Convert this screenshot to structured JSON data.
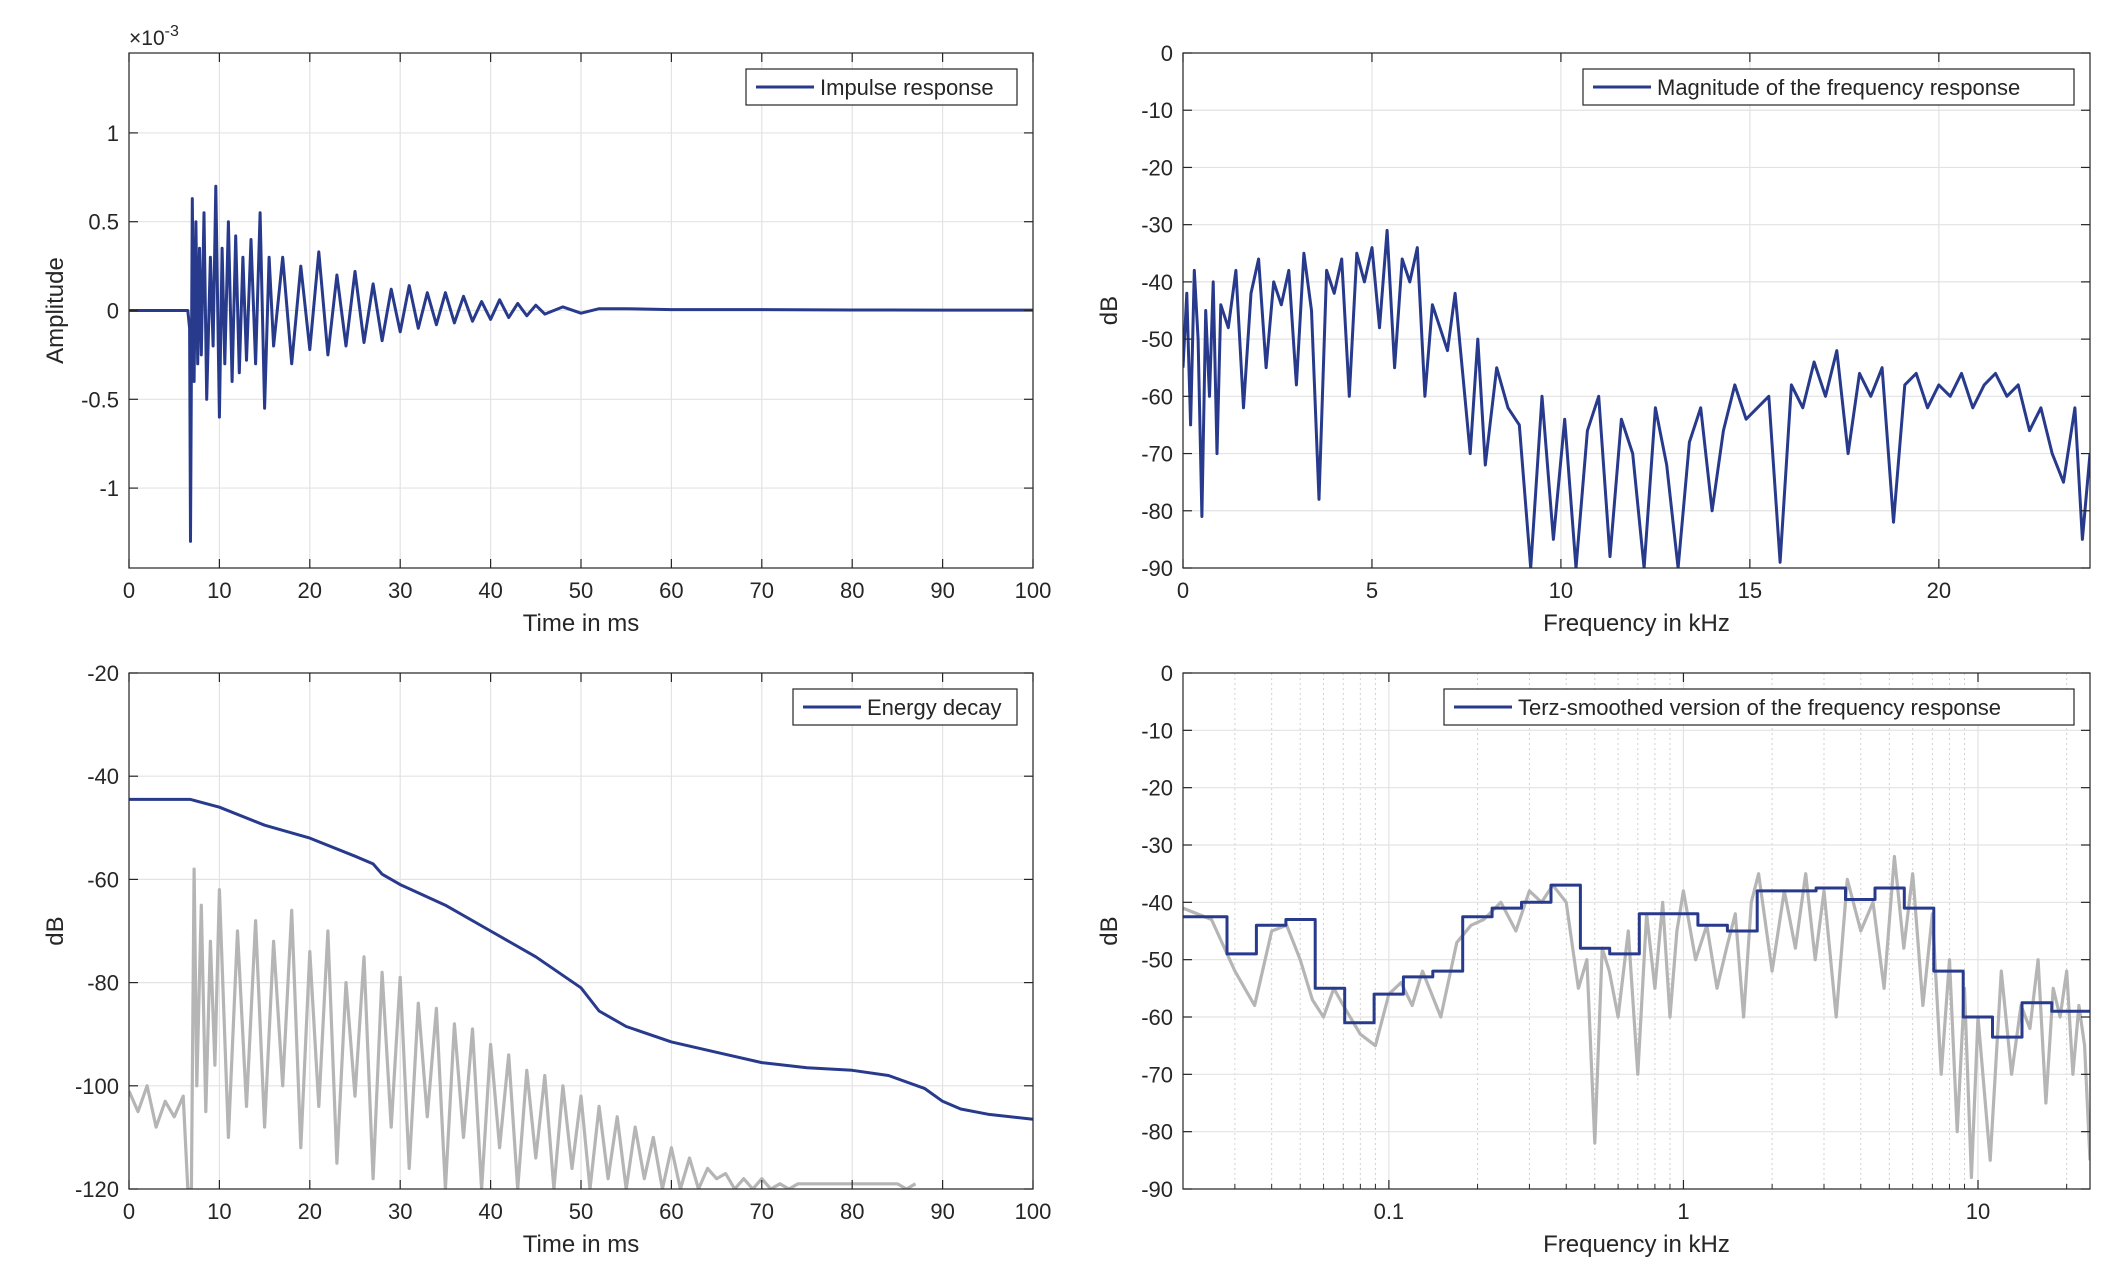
{
  "colors": {
    "series": "#283a8c",
    "gray": "#b5b5b5",
    "grid": "#e3e3e3",
    "axis": "#262626"
  },
  "chart_data": [
    {
      "id": "impulse",
      "type": "line",
      "xlabel": "Time in ms",
      "ylabel": "Amplitude",
      "exponent_label": "×10",
      "exponent_power": "-3",
      "xlim": [
        0,
        100
      ],
      "ylim": [
        -1.45,
        1.45
      ],
      "xticks": [
        0,
        10,
        20,
        30,
        40,
        50,
        60,
        70,
        80,
        90,
        100
      ],
      "xtick_labels": [
        "0",
        "10",
        "20",
        "30",
        "40",
        "50",
        "60",
        "70",
        "80",
        "90",
        "100"
      ],
      "yticks": [
        -1,
        -0.5,
        0,
        0.5,
        1
      ],
      "ytick_labels": [
        "-1",
        "-0.5",
        "0",
        "0.5",
        "1"
      ],
      "legend": [
        "Impulse response"
      ],
      "legend_position": "top-right",
      "series": [
        {
          "name": "Impulse response",
          "x": [
            0,
            6.5,
            6.7,
            6.8,
            7,
            7.2,
            7.4,
            7.6,
            7.8,
            8,
            8.3,
            8.6,
            9,
            9.3,
            9.6,
            10,
            10.3,
            10.6,
            11,
            11.4,
            11.8,
            12.2,
            12.6,
            13,
            13.5,
            14,
            14.5,
            15,
            15.5,
            16,
            17,
            18,
            19,
            20,
            21,
            22,
            23,
            24,
            25,
            26,
            27,
            28,
            29,
            30,
            31,
            32,
            33,
            34,
            35,
            36,
            37,
            38,
            39,
            40,
            41,
            42,
            43,
            44,
            45,
            46,
            48,
            50,
            52,
            55,
            60,
            70,
            80,
            90,
            100
          ],
          "y": [
            0,
            0,
            -0.1,
            -1.3,
            0.63,
            -0.4,
            0.5,
            -0.3,
            0.35,
            -0.25,
            0.55,
            -0.5,
            0.3,
            -0.2,
            0.7,
            -0.6,
            0.35,
            -0.3,
            0.5,
            -0.4,
            0.42,
            -0.35,
            0.3,
            -0.28,
            0.4,
            -0.3,
            0.55,
            -0.55,
            0.3,
            -0.2,
            0.3,
            -0.3,
            0.25,
            -0.22,
            0.33,
            -0.25,
            0.2,
            -0.2,
            0.22,
            -0.18,
            0.15,
            -0.17,
            0.12,
            -0.12,
            0.14,
            -0.1,
            0.1,
            -0.08,
            0.1,
            -0.07,
            0.08,
            -0.06,
            0.05,
            -0.05,
            0.06,
            -0.04,
            0.04,
            -0.03,
            0.03,
            -0.02,
            0.02,
            -0.015,
            0.01,
            0.01,
            0.005,
            0.005,
            0.003,
            0.002,
            0.002
          ]
        }
      ]
    },
    {
      "id": "magnitude",
      "type": "line",
      "xlabel": "Frequency in kHz",
      "ylabel": "dB",
      "xlim": [
        0,
        24
      ],
      "ylim": [
        -90,
        0
      ],
      "xticks": [
        0,
        5,
        10,
        15,
        20
      ],
      "xtick_labels": [
        "0",
        "5",
        "10",
        "15",
        "20"
      ],
      "yticks": [
        0,
        -10,
        -20,
        -30,
        -40,
        -50,
        -60,
        -70,
        -80,
        -90
      ],
      "ytick_labels": [
        "0",
        "-10",
        "-20",
        "-30",
        "-40",
        "-50",
        "-60",
        "-70",
        "-80",
        "-90"
      ],
      "legend": [
        "Magnitude of the frequency response"
      ],
      "legend_position": "top-right",
      "series": [
        {
          "name": "Magnitude of the frequency response",
          "x": [
            0,
            0.1,
            0.2,
            0.3,
            0.4,
            0.5,
            0.6,
            0.7,
            0.8,
            0.9,
            1.0,
            1.2,
            1.4,
            1.6,
            1.8,
            2.0,
            2.2,
            2.4,
            2.6,
            2.8,
            3.0,
            3.2,
            3.4,
            3.6,
            3.8,
            4.0,
            4.2,
            4.4,
            4.6,
            4.8,
            5.0,
            5.2,
            5.4,
            5.6,
            5.8,
            6.0,
            6.2,
            6.4,
            6.6,
            6.8,
            7.0,
            7.2,
            7.4,
            7.6,
            7.8,
            8.0,
            8.3,
            8.6,
            8.9,
            9.2,
            9.5,
            9.8,
            10.1,
            10.4,
            10.7,
            11.0,
            11.3,
            11.6,
            11.9,
            12.2,
            12.5,
            12.8,
            13.1,
            13.4,
            13.7,
            14.0,
            14.3,
            14.6,
            14.9,
            15.2,
            15.5,
            15.8,
            16.1,
            16.4,
            16.7,
            17.0,
            17.3,
            17.6,
            17.9,
            18.2,
            18.5,
            18.8,
            19.1,
            19.4,
            19.7,
            20.0,
            20.3,
            20.6,
            20.9,
            21.2,
            21.5,
            21.8,
            22.1,
            22.4,
            22.7,
            23.0,
            23.3,
            23.6,
            23.8,
            24.0
          ],
          "y": [
            -55,
            -42,
            -65,
            -38,
            -50,
            -81,
            -45,
            -60,
            -40,
            -70,
            -44,
            -48,
            -38,
            -62,
            -42,
            -36,
            -55,
            -40,
            -44,
            -38,
            -58,
            -35,
            -45,
            -78,
            -38,
            -42,
            -36,
            -60,
            -35,
            -40,
            -34,
            -48,
            -31,
            -55,
            -36,
            -40,
            -34,
            -60,
            -44,
            -48,
            -52,
            -42,
            -56,
            -70,
            -50,
            -72,
            -55,
            -62,
            -65,
            -90,
            -60,
            -85,
            -64,
            -90,
            -66,
            -60,
            -88,
            -64,
            -70,
            -90,
            -62,
            -72,
            -90,
            -68,
            -62,
            -80,
            -66,
            -58,
            -64,
            -62,
            -60,
            -89,
            -58,
            -62,
            -54,
            -60,
            -52,
            -70,
            -56,
            -60,
            -55,
            -82,
            -58,
            -56,
            -62,
            -58,
            -60,
            -56,
            -62,
            -58,
            -56,
            -60,
            -58,
            -66,
            -62,
            -70,
            -75,
            -62,
            -85,
            -70
          ]
        }
      ]
    },
    {
      "id": "energy",
      "type": "line",
      "xlabel": "Time in ms",
      "ylabel": "dB",
      "xlim": [
        0,
        100
      ],
      "ylim": [
        -120,
        -20
      ],
      "xticks": [
        0,
        10,
        20,
        30,
        40,
        50,
        60,
        70,
        80,
        90,
        100
      ],
      "xtick_labels": [
        "0",
        "10",
        "20",
        "30",
        "40",
        "50",
        "60",
        "70",
        "80",
        "90",
        "100"
      ],
      "yticks": [
        -20,
        -40,
        -60,
        -80,
        -100,
        -120
      ],
      "ytick_labels": [
        "-20",
        "-40",
        "-60",
        "-80",
        "-100",
        "-120"
      ],
      "legend": [
        "Energy decay"
      ],
      "legend_position": "top-right",
      "series": [
        {
          "name": "Energy decay",
          "x": [
            0,
            6.8,
            10,
            15,
            20,
            25,
            27,
            28,
            30,
            35,
            40,
            45,
            50,
            52,
            55,
            60,
            65,
            70,
            75,
            80,
            84,
            88,
            90,
            92,
            95,
            100
          ],
          "y": [
            -44.5,
            -44.5,
            -46,
            -49.5,
            -52,
            -55.5,
            -57,
            -59,
            -61,
            -65,
            -70,
            -75,
            -81,
            -85.5,
            -88.5,
            -91.5,
            -93.5,
            -95.5,
            -96.5,
            -97,
            -98,
            -100.5,
            -103,
            -104.5,
            -105.5,
            -106.5
          ]
        },
        {
          "name": "",
          "color_key": "gray",
          "x": [
            0,
            1,
            2,
            3,
            4,
            5,
            6,
            6.5,
            6.9,
            7.2,
            7.5,
            8,
            8.5,
            9,
            9.5,
            10,
            11,
            12,
            13,
            14,
            15,
            16,
            17,
            18,
            19,
            20,
            21,
            22,
            23,
            24,
            25,
            26,
            27,
            28,
            29,
            30,
            31,
            32,
            33,
            34,
            35,
            36,
            37,
            38,
            39,
            40,
            41,
            42,
            43,
            44,
            45,
            46,
            47,
            48,
            49,
            50,
            51,
            52,
            53,
            54,
            55,
            56,
            57,
            58,
            59,
            60,
            61,
            62,
            63,
            64,
            65,
            66,
            67,
            68,
            69,
            70,
            71,
            72,
            73,
            74,
            85,
            86,
            87
          ],
          "y": [
            -101,
            -105,
            -100,
            -108,
            -103,
            -106,
            -102,
            -120,
            -120,
            -58,
            -100,
            -65,
            -105,
            -72,
            -96,
            -62,
            -110,
            -70,
            -104,
            -68,
            -108,
            -72,
            -100,
            -66,
            -112,
            -74,
            -104,
            -70,
            -115,
            -80,
            -102,
            -75,
            -118,
            -78,
            -108,
            -79,
            -116,
            -84,
            -106,
            -85,
            -120,
            -88,
            -110,
            -89,
            -120,
            -92,
            -112,
            -94,
            -120,
            -97,
            -114,
            -98,
            -120,
            -100,
            -116,
            -102,
            -120,
            -104,
            -118,
            -106,
            -120,
            -108,
            -118,
            -110,
            -120,
            -112,
            -120,
            -114,
            -120,
            -116,
            -118,
            -117,
            -120,
            -118,
            -120,
            -118,
            -120,
            -119,
            -120,
            -119,
            -119,
            -120,
            -119
          ]
        }
      ]
    },
    {
      "id": "terz",
      "type": "line",
      "xlabel": "Frequency in kHz",
      "ylabel": "dB",
      "xscale": "log",
      "xlim": [
        0.02,
        24
      ],
      "ylim": [
        -90,
        0
      ],
      "xticks": [
        0.1,
        1,
        10
      ],
      "xtick_labels": [
        "0.1",
        "1",
        "10"
      ],
      "minor_xticks": [
        0.03,
        0.04,
        0.05,
        0.06,
        0.07,
        0.08,
        0.09,
        0.2,
        0.3,
        0.4,
        0.5,
        0.6,
        0.7,
        0.8,
        0.9,
        2,
        3,
        4,
        5,
        6,
        7,
        8,
        9,
        20
      ],
      "yticks": [
        0,
        -10,
        -20,
        -30,
        -40,
        -50,
        -60,
        -70,
        -80,
        -90
      ],
      "ytick_labels": [
        "0",
        "-10",
        "-20",
        "-30",
        "-40",
        "-50",
        "-60",
        "-70",
        "-80",
        "-90"
      ],
      "legend": [
        "Terz-smoothed version of the frequency response"
      ],
      "legend_position": "top-right",
      "series": [
        {
          "name": "Terz-smoothed version of the frequency response",
          "step_edges": [
            0.02,
            0.0282,
            0.0355,
            0.0447,
            0.0562,
            0.0708,
            0.0891,
            0.112,
            0.141,
            0.178,
            0.224,
            0.282,
            0.355,
            0.447,
            0.562,
            0.708,
            0.891,
            1.12,
            1.41,
            1.78,
            2.24,
            2.82,
            3.55,
            4.47,
            5.62,
            7.08,
            8.91,
            11.2,
            14.1,
            17.8,
            24
          ],
          "step_values": [
            -42.5,
            -49,
            -44,
            -43,
            -55,
            -61,
            -56,
            -53,
            -52,
            -42.5,
            -41,
            -40,
            -37,
            -48,
            -49,
            -42,
            -42,
            -44,
            -45,
            -38,
            -38,
            -37.5,
            -39.5,
            -37.5,
            -41,
            -52,
            -60,
            -63.5,
            -57.5,
            -59
          ]
        },
        {
          "name": "",
          "color_key": "gray",
          "x": [
            0.02,
            0.025,
            0.03,
            0.035,
            0.04,
            0.045,
            0.05,
            0.055,
            0.06,
            0.065,
            0.07,
            0.08,
            0.09,
            0.1,
            0.11,
            0.12,
            0.13,
            0.15,
            0.17,
            0.19,
            0.21,
            0.24,
            0.27,
            0.3,
            0.33,
            0.36,
            0.4,
            0.44,
            0.47,
            0.5,
            0.53,
            0.56,
            0.6,
            0.65,
            0.7,
            0.75,
            0.8,
            0.85,
            0.9,
            0.95,
            1.0,
            1.1,
            1.2,
            1.3,
            1.4,
            1.5,
            1.6,
            1.7,
            1.8,
            2.0,
            2.2,
            2.4,
            2.6,
            2.8,
            3.0,
            3.3,
            3.6,
            4.0,
            4.4,
            4.8,
            5.2,
            5.6,
            6.0,
            6.5,
            7.0,
            7.5,
            8.0,
            8.5,
            9.0,
            9.5,
            10,
            11,
            12,
            13,
            14,
            15,
            16,
            17,
            18,
            19,
            20,
            21,
            22,
            23,
            24
          ],
          "y": [
            -41,
            -43,
            -52,
            -58,
            -45,
            -44,
            -50,
            -57,
            -60,
            -55,
            -58,
            -63,
            -65,
            -56,
            -54,
            -58,
            -52,
            -60,
            -47,
            -44,
            -43,
            -40,
            -45,
            -38,
            -40,
            -37,
            -40,
            -55,
            -50,
            -82,
            -48,
            -52,
            -60,
            -45,
            -70,
            -42,
            -55,
            -40,
            -60,
            -45,
            -38,
            -50,
            -44,
            -55,
            -48,
            -42,
            -60,
            -40,
            -35,
            -52,
            -38,
            -48,
            -35,
            -50,
            -38,
            -60,
            -36,
            -45,
            -40,
            -55,
            -32,
            -48,
            -35,
            -58,
            -42,
            -70,
            -50,
            -80,
            -55,
            -88,
            -60,
            -85,
            -52,
            -70,
            -58,
            -62,
            -50,
            -75,
            -55,
            -60,
            -52,
            -70,
            -58,
            -65,
            -85
          ]
        }
      ]
    }
  ]
}
